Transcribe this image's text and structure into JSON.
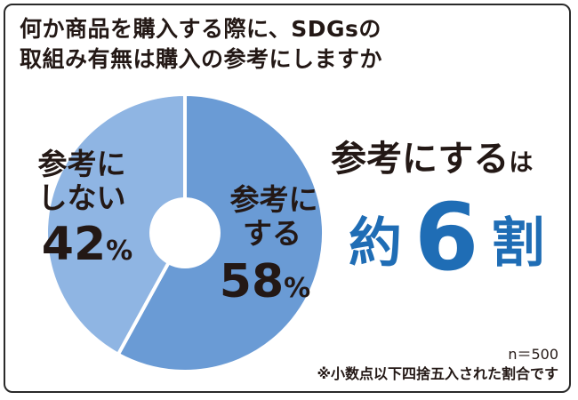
{
  "title": {
    "line1": "何か商品を購入する際に、SDGsの",
    "line2": "取組み有無は購入の参考にしますか"
  },
  "chart_data": {
    "type": "pie",
    "donut": true,
    "slices": [
      {
        "label_lines": [
          "参考に",
          "する"
        ],
        "value": 58,
        "value_text": "58",
        "unit": "%",
        "color": "#6a9bd5"
      },
      {
        "label_lines": [
          "参考に",
          "しない"
        ],
        "value": 42,
        "value_text": "42",
        "unit": "%",
        "color": "#8fb5e3"
      }
    ]
  },
  "headline": {
    "main": "参考にする",
    "particle": "は"
  },
  "big_text": {
    "prefix": "約",
    "number": "6",
    "suffix": "割"
  },
  "notes": {
    "n": "n＝500",
    "rounding": "※小数点以下四捨五入された割合です"
  }
}
